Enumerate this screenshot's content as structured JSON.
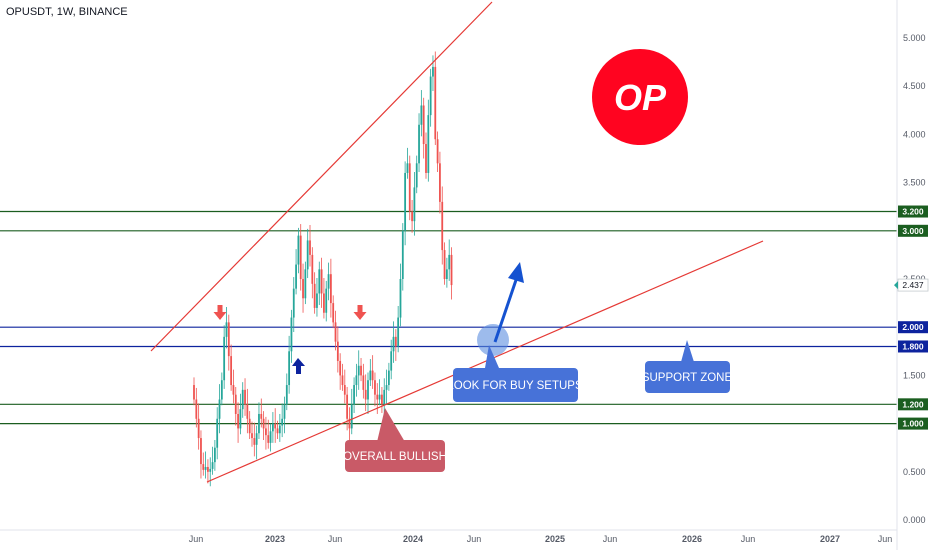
{
  "symbol_title": "OPUSDT, 1W, BINANCE",
  "logo_text": "OP",
  "colors": {
    "up": "#26a69a",
    "down": "#ef5350",
    "support_line": "#1b5e20",
    "blue_line": "#0d239e",
    "trend_line": "#e53935",
    "callout_red": "#c95a67",
    "callout_blue": "#4772d8",
    "logo": "#ff0420"
  },
  "annotations": {
    "overall_bullish": "OVERALL BULLISH",
    "look_for_buy": "LOOK FOR BUY SETUPS",
    "support_zone": "SUPPORT ZONE"
  },
  "current_price_label": "2.437",
  "chart_data": {
    "type": "candlestick",
    "ylim": [
      0,
      5.3
    ],
    "y_ticks": [
      "0.000",
      "0.500",
      "1.000",
      "1.500",
      "2.000",
      "2.500",
      "3.000",
      "3.500",
      "4.000",
      "4.500",
      "5.000"
    ],
    "x_ticks": [
      "Jun",
      "2023",
      "Jun",
      "2024",
      "Jun",
      "2025",
      "Jun",
      "2026",
      "Jun",
      "2027",
      "Jun"
    ],
    "horizontal_levels": [
      {
        "label": "3.200",
        "value": 3.2,
        "kind": "resistance"
      },
      {
        "label": "3.000",
        "value": 3.0,
        "kind": "resistance"
      },
      {
        "label": "2.000",
        "value": 2.0,
        "kind": "support"
      },
      {
        "label": "1.800",
        "value": 1.8,
        "kind": "support"
      },
      {
        "label": "1.200",
        "value": 1.2,
        "kind": "resistance"
      },
      {
        "label": "1.000",
        "value": 1.0,
        "kind": "resistance"
      }
    ],
    "current_price": 2.437,
    "candles_close": [
      1.25,
      1.05,
      0.85,
      0.58,
      0.52,
      0.55,
      0.5,
      0.53,
      0.6,
      0.75,
      1.05,
      1.25,
      1.45,
      1.9,
      2.05,
      1.7,
      1.4,
      1.3,
      1.1,
      0.95,
      1.15,
      1.35,
      1.2,
      1.05,
      0.9,
      0.85,
      0.78,
      0.9,
      1.1,
      1.05,
      0.95,
      0.88,
      0.8,
      0.92,
      1.0,
      0.95,
      0.9,
      0.98,
      1.05,
      1.2,
      1.4,
      1.75,
      2.1,
      2.4,
      2.65,
      2.95,
      2.5,
      2.3,
      2.6,
      2.9,
      2.75,
      2.45,
      2.2,
      2.35,
      2.6,
      2.35,
      2.15,
      2.4,
      2.55,
      2.25,
      2.05,
      1.85,
      1.65,
      1.5,
      1.4,
      1.3,
      1.05,
      0.95,
      1.2,
      1.4,
      1.5,
      1.6,
      1.5,
      1.35,
      1.25,
      1.45,
      1.55,
      1.45,
      1.3,
      1.25,
      1.3,
      1.2,
      1.35,
      1.4,
      1.55,
      1.75,
      1.9,
      1.8,
      2.1,
      2.5,
      3.0,
      3.6,
      3.7,
      3.2,
      3.1,
      3.45,
      3.7,
      4.1,
      4.3,
      3.9,
      3.6,
      4.2,
      4.6,
      4.7,
      3.95,
      3.7,
      3.3,
      2.8,
      2.5,
      2.6,
      2.75,
      2.437
    ]
  }
}
